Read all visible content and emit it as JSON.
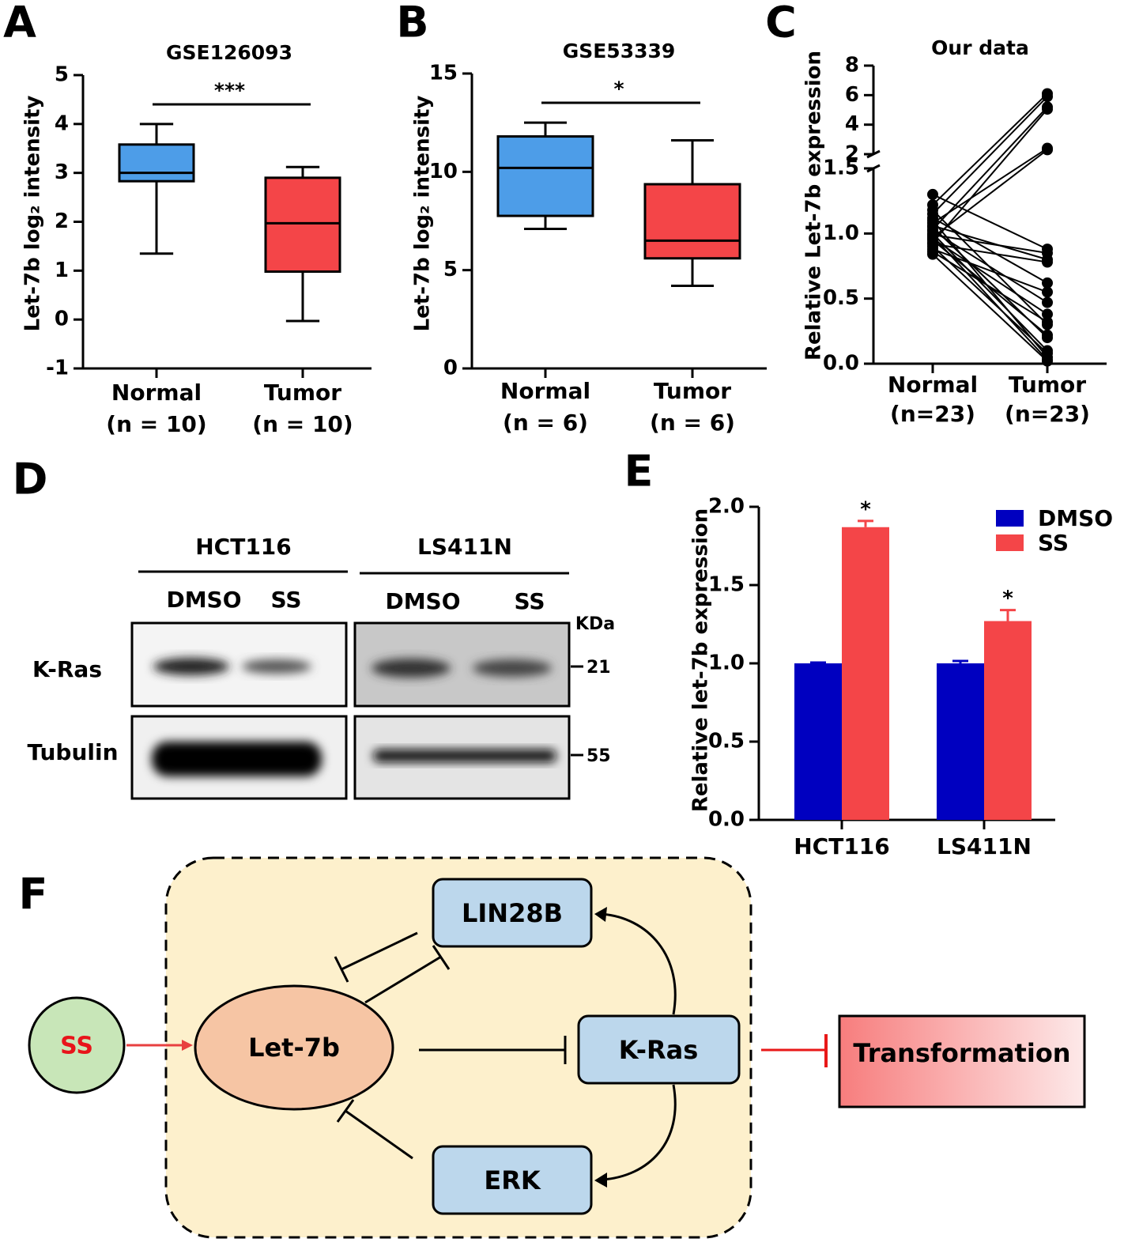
{
  "chart_data": [
    {
      "type": "box",
      "panel": "A",
      "title": "GSE126093",
      "ylabel": "Let-7b log₂ intensity",
      "categories": [
        "Normal",
        "Tumor"
      ],
      "category_notes": [
        "(n = 10)",
        "(n = 10)"
      ],
      "values": [
        [
          1.35,
          2.83,
          3.0,
          3.58,
          4.0
        ],
        [
          -0.03,
          0.98,
          1.97,
          2.9,
          3.12
        ]
      ],
      "colors": [
        "#4d9de8",
        "#f44548"
      ],
      "significance": "***",
      "ylim": [
        -1,
        5
      ],
      "yticks": [
        -1,
        0,
        1,
        2,
        3,
        4,
        5
      ]
    },
    {
      "type": "box",
      "panel": "B",
      "title": "GSE53339",
      "ylabel": "Let-7b log₂ intensity",
      "categories": [
        "Normal",
        "Tumor"
      ],
      "category_notes": [
        "(n = 6)",
        "(n = 6)"
      ],
      "values": [
        [
          7.1,
          7.76,
          10.2,
          11.8,
          12.5
        ],
        [
          4.2,
          5.6,
          6.5,
          9.37,
          11.6
        ]
      ],
      "colors": [
        "#4d9de8",
        "#f44548"
      ],
      "significance": "*",
      "ylim": [
        0,
        15
      ],
      "yticks": [
        0,
        5,
        10,
        15
      ]
    },
    {
      "type": "paired",
      "panel": "C",
      "title": "Our data",
      "ylabel": "Relative Let-7b expression",
      "categories": [
        "Normal",
        "Tumor"
      ],
      "category_notes": [
        "(n=23)",
        "(n=23)"
      ],
      "values": [
        [
          1.3,
          0.88
        ],
        [
          1.22,
          6.1
        ],
        [
          1.18,
          0.3
        ],
        [
          1.15,
          5.9
        ],
        [
          1.12,
          0.62
        ],
        [
          1.1,
          0.05
        ],
        [
          1.08,
          2.4
        ],
        [
          1.06,
          0.8
        ],
        [
          1.05,
          0.2
        ],
        [
          1.03,
          5.2
        ],
        [
          1.02,
          0.47
        ],
        [
          1.0,
          0.1
        ],
        [
          0.99,
          0.85
        ],
        [
          0.98,
          0.03
        ],
        [
          0.97,
          2.3
        ],
        [
          0.96,
          0.38
        ],
        [
          0.95,
          0.22
        ],
        [
          0.93,
          5.05
        ],
        [
          0.92,
          0.78
        ],
        [
          0.9,
          0.08
        ],
        [
          0.88,
          0.55
        ],
        [
          0.86,
          0.32
        ],
        [
          0.84,
          0.02
        ]
      ],
      "color": "#000000",
      "ylim": [
        0,
        8
      ],
      "y_break": [
        1.5,
        2
      ],
      "yticks": [
        {
          "value": 0,
          "label": "0.0"
        },
        {
          "value": 0.5,
          "label": "0.5"
        },
        {
          "value": 1,
          "label": "1.0"
        },
        {
          "value": 1.5,
          "label": "1.5"
        },
        2,
        4,
        6,
        8
      ]
    },
    {
      "type": "bar",
      "panel": "E",
      "ylabel": "Relative let-7b expression",
      "categories": [
        "HCT116",
        "LS411N"
      ],
      "series": [
        {
          "name": "DMSO",
          "color": "#0000c0",
          "values": [
            1.0,
            1.0
          ],
          "errors": [
            0.005,
            0.015
          ]
        },
        {
          "name": "SS",
          "color": "#f44548",
          "values": [
            1.87,
            1.27
          ],
          "errors": [
            0.04,
            0.07
          ]
        }
      ],
      "annotations": [
        "*",
        "*"
      ],
      "legend": "upper right",
      "ylim": [
        0,
        2
      ],
      "yticks": [
        {
          "value": 0,
          "label": "0.0"
        },
        {
          "value": 0.5,
          "label": "0.5"
        },
        {
          "value": 1,
          "label": "1.0"
        },
        {
          "value": 1.5,
          "label": "1.5"
        },
        {
          "value": 2,
          "label": "2.0"
        }
      ]
    }
  ],
  "blot": {
    "panel": "D",
    "groups": [
      {
        "name": "HCT116",
        "lanes": [
          "DMSO",
          "SS"
        ]
      },
      {
        "name": "LS411N",
        "lanes": [
          "DMSO",
          "SS"
        ]
      }
    ],
    "unit": "KDa",
    "rows": [
      {
        "name": "K-Ras",
        "size": 21
      },
      {
        "name": "Tubulin",
        "size": 55
      }
    ]
  },
  "diagram": {
    "panel": "F",
    "nodes": [
      "SS",
      "Let-7b",
      "LIN28B",
      "K-Ras",
      "ERK",
      "Transformation"
    ]
  }
}
